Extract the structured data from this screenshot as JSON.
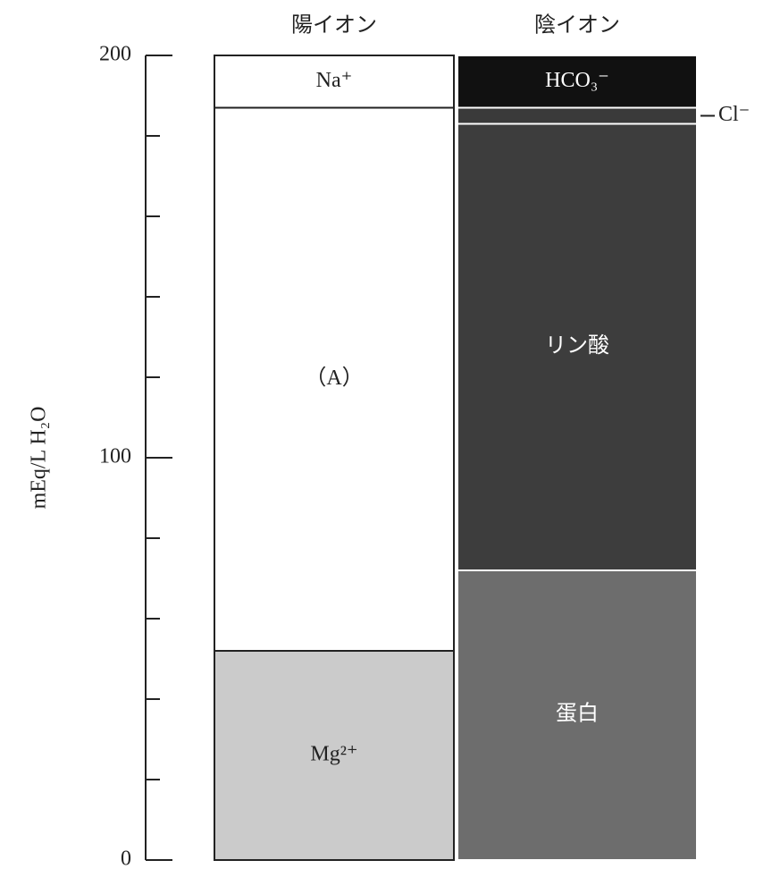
{
  "chart_data": {
    "type": "stacked_bar",
    "ylabel": "mEq/L H₂O",
    "categories": [
      "陽イオン",
      "陰イオン"
    ],
    "series": [
      {
        "name": "Mg²⁺",
        "color": "#cbcbcb",
        "values": [
          52,
          null
        ]
      },
      {
        "name": "（A）",
        "color": "#ffffff",
        "values": [
          135,
          null
        ]
      },
      {
        "name": "Na⁺",
        "color": "#ffffff",
        "values": [
          13,
          null
        ]
      },
      {
        "name": "蛋白",
        "color": "#6d6d6d",
        "values": [
          null,
          72
        ]
      },
      {
        "name": "リン酸",
        "color": "#3d3d3d",
        "values": [
          null,
          111
        ]
      },
      {
        "name": "Cl⁻",
        "color": "#3a3a3a",
        "values": [
          null,
          4
        ]
      },
      {
        "name": "HCO₃⁻",
        "color": "#111111",
        "values": [
          null,
          13
        ]
      }
    ],
    "ylim": [
      0,
      200
    ],
    "yticks": [
      0,
      100,
      200
    ],
    "minor_yticks": [
      20,
      40,
      60,
      80,
      120,
      140,
      160,
      180
    ]
  }
}
